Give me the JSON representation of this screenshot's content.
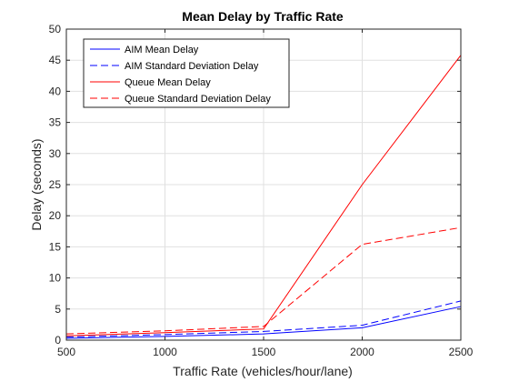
{
  "chart_data": {
    "type": "line",
    "title": "Mean Delay by Traffic Rate",
    "xlabel": "Traffic Rate (vehicles/hour/lane)",
    "ylabel": "Delay (seconds)",
    "xlim": [
      500,
      2500
    ],
    "ylim": [
      0,
      50
    ],
    "xticks": [
      500,
      1000,
      1500,
      2000,
      2500
    ],
    "yticks": [
      0,
      5,
      10,
      15,
      20,
      25,
      30,
      35,
      40,
      45,
      50
    ],
    "grid": true,
    "legend_position": "top-left",
    "x": [
      500,
      1000,
      1500,
      2000,
      2500
    ],
    "series": [
      {
        "name": "AIM Mean Delay",
        "color": "#0000ff",
        "dash": "solid",
        "values": [
          0.3,
          0.6,
          1.0,
          2.0,
          5.4
        ]
      },
      {
        "name": "AIM Standard Deviation Delay",
        "color": "#0000ff",
        "dash": "dashed",
        "values": [
          0.5,
          0.9,
          1.4,
          2.4,
          6.3
        ]
      },
      {
        "name": "Queue Mean Delay",
        "color": "#ff0000",
        "dash": "solid",
        "values": [
          0.7,
          1.2,
          1.8,
          25.0,
          45.8
        ]
      },
      {
        "name": "Queue Standard Deviation Delay",
        "color": "#ff0000",
        "dash": "dashed",
        "values": [
          1.0,
          1.5,
          2.2,
          15.4,
          18.1
        ]
      }
    ]
  }
}
